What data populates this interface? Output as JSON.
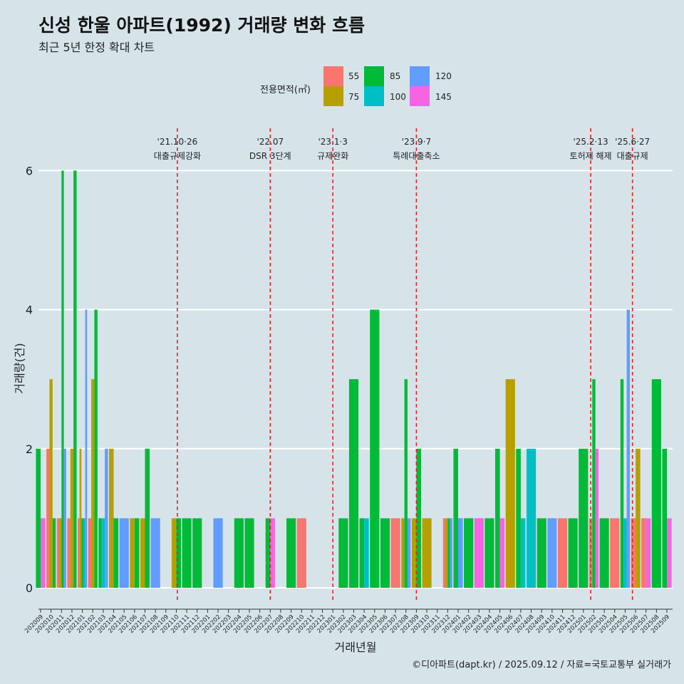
{
  "title": "신성 한울 아파트(1992) 거래량 변화 흐름",
  "subtitle": "최근 5년 한정 확대 차트",
  "caption": "©디아파트(dapt.kr) / 2025.09.12 / 자료=국토교통부 실거래가",
  "legend": {
    "title": "전용면적(㎡)",
    "entries": [
      {
        "label": "55",
        "color": "#f8766d"
      },
      {
        "label": "75",
        "color": "#b79f00"
      },
      {
        "label": "85",
        "color": "#00ba38"
      },
      {
        "label": "100",
        "color": "#00bfc4"
      },
      {
        "label": "120",
        "color": "#619cff"
      },
      {
        "label": "145",
        "color": "#f564e3"
      }
    ]
  },
  "chart_data": {
    "type": "bar",
    "xlabel": "거래년월",
    "ylabel": "거래량(건)",
    "ylim": [
      0,
      6
    ],
    "yticks": [
      0,
      2,
      4,
      6
    ],
    "categories": [
      "202009",
      "202010",
      "202011",
      "202012",
      "202101",
      "202102",
      "202103",
      "202104",
      "202105",
      "202106",
      "202107",
      "202108",
      "202109",
      "202110",
      "202111",
      "202112",
      "202201",
      "202202",
      "202203",
      "202204",
      "202205",
      "202206",
      "202207",
      "202208",
      "202209",
      "202210",
      "202211",
      "202212",
      "202301",
      "202302",
      "202303",
      "202304",
      "202305",
      "202306",
      "202307",
      "202308",
      "202309",
      "202310",
      "202311",
      "202312",
      "202401",
      "202402",
      "202403",
      "202404",
      "202405",
      "202406",
      "202407",
      "202408",
      "202409",
      "202410",
      "202411",
      "202412",
      "202501",
      "202502",
      "202503",
      "202504",
      "202505",
      "202506",
      "202507",
      "202508",
      "202509"
    ],
    "series": [
      {
        "name": "55",
        "color": "#f8766d",
        "values": [
          0,
          2,
          1,
          1,
          1,
          1,
          0,
          0,
          0,
          0,
          0,
          0,
          0,
          0,
          0,
          0,
          0,
          0,
          0,
          0,
          0,
          0,
          0,
          0,
          0,
          1,
          0,
          0,
          0,
          0,
          0,
          0,
          0,
          0,
          1,
          0,
          0,
          0,
          0,
          1,
          0,
          0,
          0,
          0,
          0,
          0,
          0,
          0,
          0,
          0,
          1,
          0,
          0,
          1,
          0,
          1,
          0,
          1,
          1,
          0,
          0
        ]
      },
      {
        "name": "75",
        "color": "#b79f00",
        "values": [
          0,
          3,
          1,
          2,
          2,
          3,
          0,
          2,
          0,
          1,
          1,
          0,
          0,
          1,
          0,
          0,
          0,
          0,
          0,
          0,
          0,
          0,
          0,
          0,
          0,
          0,
          0,
          0,
          0,
          0,
          0,
          0,
          0,
          0,
          0,
          1,
          1,
          1,
          0,
          1,
          0,
          0,
          0,
          0,
          0,
          3,
          0,
          0,
          0,
          0,
          0,
          0,
          0,
          0,
          0,
          0,
          0,
          2,
          0,
          0,
          0
        ]
      },
      {
        "name": "85",
        "color": "#00ba38",
        "values": [
          2,
          1,
          6,
          6,
          1,
          4,
          1,
          1,
          0,
          1,
          2,
          0,
          0,
          1,
          1,
          1,
          0,
          0,
          0,
          1,
          1,
          0,
          1,
          0,
          1,
          0,
          0,
          0,
          0,
          1,
          3,
          1,
          4,
          1,
          0,
          3,
          2,
          0,
          0,
          1,
          2,
          1,
          0,
          1,
          2,
          0,
          2,
          0,
          1,
          0,
          0,
          1,
          2,
          3,
          1,
          0,
          3,
          0,
          0,
          3,
          2
        ]
      },
      {
        "name": "100",
        "color": "#00bfc4",
        "values": [
          0,
          0,
          0,
          0,
          1,
          0,
          1,
          0,
          0,
          0,
          0,
          0,
          0,
          0,
          0,
          0,
          0,
          0,
          0,
          0,
          0,
          0,
          0,
          0,
          0,
          0,
          0,
          0,
          0,
          0,
          0,
          1,
          0,
          0,
          0,
          0,
          0,
          0,
          0,
          0,
          0,
          0,
          0,
          0,
          0,
          0,
          1,
          2,
          0,
          0,
          0,
          0,
          0,
          0,
          0,
          0,
          1,
          0,
          0,
          0,
          0
        ]
      },
      {
        "name": "120",
        "color": "#619cff",
        "values": [
          0,
          0,
          2,
          0,
          4,
          0,
          2,
          0,
          1,
          0,
          0,
          1,
          0,
          0,
          0,
          0,
          0,
          1,
          0,
          0,
          0,
          0,
          0,
          0,
          0,
          0,
          0,
          0,
          0,
          0,
          0,
          0,
          0,
          0,
          0,
          1,
          0,
          0,
          0,
          1,
          1,
          0,
          0,
          0,
          0,
          0,
          0,
          0,
          0,
          1,
          0,
          0,
          0,
          0,
          0,
          0,
          4,
          0,
          0,
          0,
          0
        ]
      },
      {
        "name": "145",
        "color": "#f564e3",
        "values": [
          1,
          0,
          0,
          0,
          0,
          0,
          0,
          0,
          0,
          0,
          0,
          0,
          0,
          0,
          0,
          0,
          0,
          0,
          0,
          0,
          0,
          0,
          1,
          0,
          0,
          0,
          0,
          0,
          0,
          0,
          0,
          0,
          0,
          0,
          0,
          0,
          0,
          0,
          0,
          0,
          0,
          0,
          1,
          0,
          1,
          0,
          0,
          0,
          0,
          0,
          0,
          0,
          0,
          2,
          0,
          0,
          0,
          0,
          1,
          0,
          1
        ]
      }
    ],
    "events": [
      {
        "index": 13.1,
        "label_date": "'21.10·26",
        "label_text": "대출규제강화"
      },
      {
        "index": 22.0,
        "label_date": "'22.07",
        "label_text": "DSR 3단계"
      },
      {
        "index": 28.0,
        "label_date": "'23.1·3",
        "label_text": "규제완화"
      },
      {
        "index": 36.0,
        "label_date": "'23.9·7",
        "label_text": "특례대출축소"
      },
      {
        "index": 52.7,
        "label_date": "'25.2·13",
        "label_text": "토허제 해제"
      },
      {
        "index": 56.7,
        "label_date": "'25.6·27",
        "label_text": "대출규제"
      }
    ],
    "grid": true,
    "legend_position": "top"
  }
}
